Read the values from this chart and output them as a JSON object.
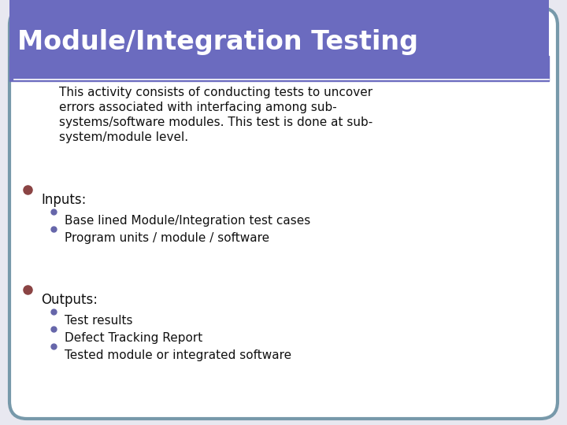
{
  "title": "Module/Integration Testing",
  "title_bg_color": "#6B6BBF",
  "title_text_color": "#FFFFFF",
  "slide_bg_color": "#E8E8F0",
  "border_color": "#7799AA",
  "body_bg_color": "#FFFFFF",
  "intro_text_lines": [
    "This activity consists of conducting tests to uncover",
    "errors associated with interfacing among sub-",
    "systems/software modules. This test is done at sub-",
    "system/module level."
  ],
  "bullet1_label": "Inputs:",
  "bullet1_color": "#8B4444",
  "bullet1_sub": [
    "Base lined Module/Integration test cases",
    "Program units / module / software"
  ],
  "bullet2_label": "Outputs:",
  "bullet2_color": "#8B4444",
  "bullet2_sub": [
    "Test results",
    "Defect Tracking Report",
    "Tested module or integrated software"
  ],
  "sub_bullet_color": "#6666AA",
  "white_line_color": "#FFFFFF",
  "figsize": [
    7.2,
    5.4
  ],
  "dpi": 100
}
